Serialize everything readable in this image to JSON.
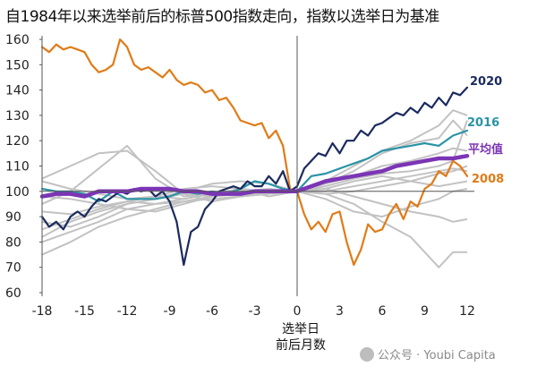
{
  "chart_data": {
    "type": "line",
    "title": "自1984年以来选举前后的标普500指数走向，指数以选举日为基准",
    "xlabel": "选举日\n前后月数",
    "ylabel": "",
    "xlim": [
      -18,
      12.5
    ],
    "ylim": [
      60,
      160
    ],
    "grid": false,
    "legend": "inline-right",
    "x_ticks": [
      -18,
      -15,
      -12,
      -9,
      -6,
      -3,
      0,
      3,
      6,
      9,
      12
    ],
    "y_ticks": [
      60,
      70,
      80,
      90,
      100,
      110,
      120,
      130,
      140,
      150,
      160
    ],
    "colors": {
      "y2020": "#1b2a5e",
      "y2016": "#2a93a6",
      "average": "#7b35b5",
      "y2008": "#e07b17",
      "other": "#c2c2c2",
      "axis": "#555555"
    },
    "series": [
      {
        "name": "2020",
        "color": "#1b2a5e",
        "x": [
          -18,
          -17.5,
          -17,
          -16.5,
          -16,
          -15.5,
          -15,
          -14.5,
          -14,
          -13.5,
          -13,
          -12.5,
          -12,
          -11.5,
          -11,
          -10.5,
          -10,
          -9.5,
          -9,
          -8.5,
          -8,
          -7.5,
          -7,
          -6.5,
          -6,
          -5.5,
          -5,
          -4.5,
          -4,
          -3.5,
          -3,
          -2.5,
          -2,
          -1.5,
          -1,
          -0.5,
          0,
          0.5,
          1,
          1.5,
          2,
          2.5,
          3,
          3.5,
          4,
          4.5,
          5,
          5.5,
          6,
          6.5,
          7,
          7.5,
          8,
          8.5,
          9,
          9.5,
          10,
          10.5,
          11,
          11.5,
          12
        ],
        "y": [
          90,
          86,
          88,
          85,
          90,
          92,
          90,
          94,
          97,
          96,
          98,
          100,
          99,
          101,
          100,
          101,
          98,
          100,
          96,
          88,
          71,
          84,
          86,
          93,
          96,
          100,
          101,
          102,
          101,
          104,
          102,
          102,
          106,
          103,
          108,
          100,
          102,
          109,
          112,
          115,
          114,
          119,
          115,
          120,
          120,
          124,
          122,
          126,
          127,
          129,
          131,
          130,
          133,
          131,
          135,
          133,
          137,
          134,
          139,
          138,
          141
        ]
      },
      {
        "name": "2016",
        "color": "#2a93a6",
        "x": [
          -18,
          -17,
          -16,
          -15,
          -14,
          -13,
          -12,
          -11,
          -10,
          -9,
          -8,
          -7,
          -6,
          -5,
          -4,
          -3,
          -2,
          -1,
          0,
          1,
          2,
          3,
          4,
          5,
          6,
          7,
          8,
          9,
          10,
          11,
          12
        ],
        "y": [
          101,
          100,
          100,
          99,
          96,
          100,
          97,
          97,
          97,
          98,
          100,
          99,
          100,
          99,
          101,
          104,
          103,
          101,
          100,
          106,
          107,
          109,
          111,
          113,
          116,
          117,
          118,
          119,
          118,
          122,
          124
        ]
      },
      {
        "name": "2008",
        "color": "#e07b17",
        "x": [
          -18,
          -17.5,
          -17,
          -16.5,
          -16,
          -15.5,
          -15,
          -14.5,
          -14,
          -13.5,
          -13,
          -12.5,
          -12,
          -11.5,
          -11,
          -10.5,
          -10,
          -9.5,
          -9,
          -8.5,
          -8,
          -7.5,
          -7,
          -6.5,
          -6,
          -5.5,
          -5,
          -4.5,
          -4,
          -3.5,
          -3,
          -2.5,
          -2,
          -1.5,
          -1,
          -0.5,
          0,
          0.5,
          1,
          1.5,
          2,
          2.5,
          3,
          3.5,
          4,
          4.5,
          5,
          5.5,
          6,
          6.5,
          7,
          7.5,
          8,
          8.5,
          9,
          9.5,
          10,
          10.5,
          11,
          11.5,
          12
        ],
        "y": [
          157,
          155,
          158,
          156,
          157,
          156,
          155,
          150,
          147,
          148,
          150,
          160,
          157,
          150,
          148,
          149,
          147,
          145,
          148,
          144,
          142,
          143,
          142,
          139,
          140,
          136,
          137,
          133,
          128,
          127,
          126,
          127,
          121,
          124,
          118,
          101,
          100,
          91,
          85,
          88,
          84,
          91,
          92,
          80,
          71,
          77,
          87,
          84,
          85,
          91,
          95,
          89,
          96,
          94,
          101,
          103,
          108,
          106,
          112,
          110,
          106
        ]
      },
      {
        "name": "平均值",
        "color": "#7b35b5",
        "x": [
          -18,
          -17,
          -16,
          -15,
          -14,
          -13,
          -12,
          -11,
          -10,
          -9,
          -8,
          -7,
          -6,
          -5,
          -4,
          -3,
          -2,
          -1,
          0,
          1,
          2,
          3,
          4,
          5,
          6,
          7,
          8,
          9,
          10,
          11,
          12
        ],
        "y": [
          98,
          99,
          99,
          98,
          100,
          100,
          100,
          101,
          101,
          101,
          100,
          100,
          99,
          99,
          99,
          100,
          100,
          100,
          100,
          102,
          104,
          105,
          106,
          107,
          108,
          110,
          111,
          112,
          113,
          113,
          114
        ]
      }
    ],
    "background_series": [
      {
        "x": [
          -18,
          -16,
          -14,
          -12,
          -10,
          -8,
          -6,
          -4,
          -2,
          0,
          2,
          4,
          6,
          8,
          10,
          11,
          12
        ],
        "y": [
          105,
          110,
          115,
          116,
          108,
          99,
          96,
          98,
          99,
          100,
          102,
          105,
          107,
          108,
          110,
          112,
          128
        ]
      },
      {
        "x": [
          -18,
          -16,
          -14,
          -12,
          -10,
          -8,
          -6,
          -4,
          -2,
          0,
          2,
          4,
          6,
          8,
          10,
          11,
          12
        ],
        "y": [
          75,
          80,
          86,
          90,
          93,
          96,
          98,
          99,
          100,
          100,
          99,
          95,
          88,
          82,
          70,
          76,
          76
        ]
      },
      {
        "x": [
          -18,
          -16,
          -14,
          -12,
          -10,
          -8,
          -6,
          -4,
          -2,
          0,
          2,
          4,
          6,
          8,
          10,
          11,
          12
        ],
        "y": [
          82,
          88,
          92,
          95,
          97,
          99,
          98,
          99,
          99,
          100,
          101,
          98,
          95,
          92,
          90,
          88,
          89
        ]
      },
      {
        "x": [
          -18,
          -16,
          -14,
          -12,
          -10,
          -8,
          -6,
          -4,
          -2,
          0,
          2,
          4,
          6,
          8,
          10,
          11,
          12
        ],
        "y": [
          95,
          100,
          109,
          118,
          105,
          98,
          99,
          101,
          98,
          100,
          103,
          108,
          115,
          119,
          121,
          128,
          122
        ]
      },
      {
        "x": [
          -18,
          -16,
          -14,
          -12,
          -10,
          -8,
          -6,
          -4,
          -2,
          0,
          2,
          4,
          6,
          8,
          10,
          11,
          12
        ],
        "y": [
          92,
          91,
          94,
          96,
          95,
          97,
          99,
          100,
          99,
          100,
          100,
          102,
          104,
          106,
          108,
          109,
          108
        ]
      },
      {
        "x": [
          -18,
          -16,
          -14,
          -12,
          -10,
          -8,
          -6,
          -4,
          -2,
          0,
          2,
          4,
          6,
          8,
          10,
          11,
          12
        ],
        "y": [
          88,
          86,
          90,
          95,
          97,
          100,
          103,
          104,
          103,
          100,
          101,
          104,
          106,
          104,
          102,
          103,
          104
        ]
      },
      {
        "x": [
          -18,
          -16,
          -14,
          -12,
          -10,
          -8,
          -6,
          -4,
          -2,
          0,
          2,
          4,
          6,
          8,
          10,
          11,
          12
        ],
        "y": [
          98,
          97,
          95,
          93,
          92,
          95,
          98,
          100,
          101,
          100,
          103,
          106,
          110,
          112,
          115,
          117,
          116
        ]
      },
      {
        "x": [
          -18,
          -16,
          -14,
          -12,
          -10,
          -8,
          -6,
          -4,
          -2,
          0,
          2,
          4,
          6,
          8,
          10,
          11,
          12
        ],
        "y": [
          85,
          89,
          93,
          96,
          98,
          97,
          99,
          100,
          100,
          100,
          99,
          100,
          102,
          104,
          107,
          108,
          110
        ]
      },
      {
        "x": [
          -18,
          -16,
          -14,
          -12,
          -10,
          -8,
          -6,
          -4,
          -2,
          0,
          2,
          4,
          6,
          8,
          10,
          11,
          12
        ],
        "y": [
          104,
          101,
          99,
          97,
          98,
          101,
          102,
          101,
          100,
          100,
          104,
          110,
          116,
          120,
          126,
          132,
          130
        ]
      },
      {
        "x": [
          -18,
          -16,
          -14,
          -12,
          -10,
          -8,
          -6,
          -4,
          -2,
          0,
          2,
          4,
          6,
          8,
          10,
          11,
          12
        ],
        "y": [
          80,
          84,
          88,
          93,
          95,
          96,
          97,
          98,
          99,
          100,
          97,
          92,
          90,
          94,
          97,
          100,
          101
        ]
      }
    ],
    "labels": {
      "y2020": "2020",
      "y2016": "2016",
      "average": "平均值",
      "y2008": "2008"
    }
  },
  "watermark": {
    "text": "公众号 · Youbi Capita"
  }
}
